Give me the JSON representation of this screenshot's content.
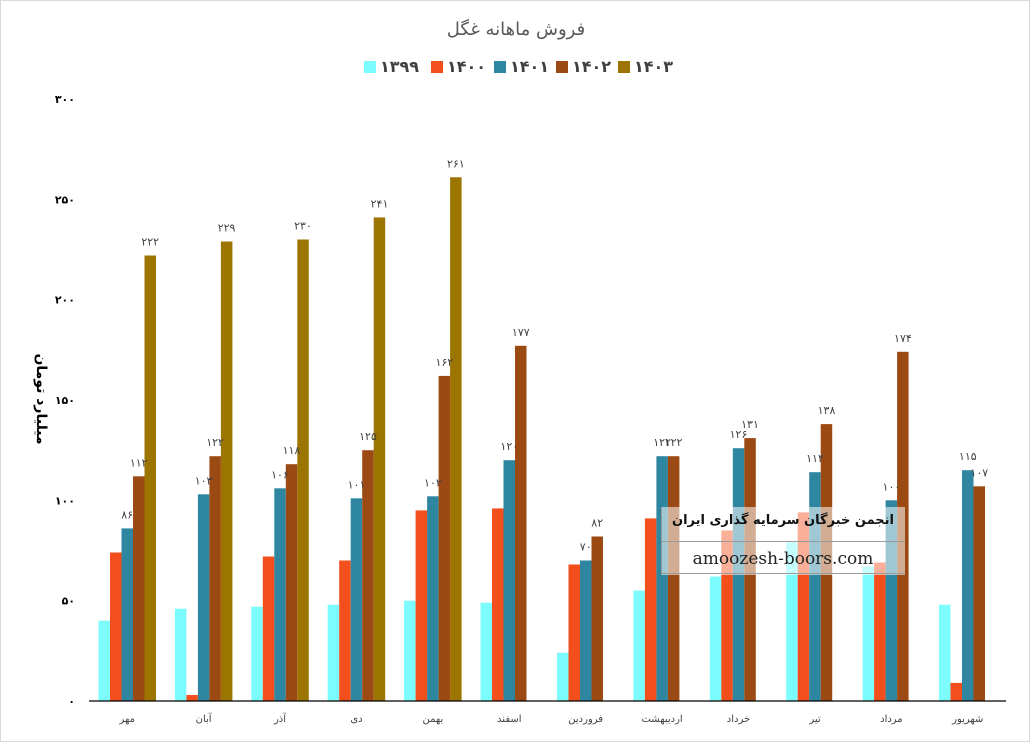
{
  "chart_data": {
    "type": "bar",
    "title": "فروش ماهانه غگل",
    "ylabel": "میلیارد تومان",
    "xlabel": "",
    "ylim": [
      0,
      300
    ],
    "yticks": [
      "۰",
      "۵۰",
      "۱۰۰",
      "۱۵۰",
      "۲۰۰",
      "۲۵۰",
      "۳۰۰"
    ],
    "grid": false,
    "legend_position": "top",
    "categories": [
      "مهر",
      "آبان",
      "آذر",
      "دی",
      "بهمن",
      "اسفند",
      "فروردین",
      "اردیبهشت",
      "خرداد",
      "تیر",
      "مرداد",
      "شهریور"
    ],
    "series": [
      {
        "name": "۱۳۹۹",
        "color": "#7cfcfc",
        "values": [
          40,
          46,
          47,
          48,
          50,
          49,
          24,
          55,
          62,
          79,
          67,
          48
        ],
        "labels": [
          null,
          null,
          null,
          null,
          null,
          null,
          null,
          null,
          null,
          null,
          null,
          null
        ]
      },
      {
        "name": "۱۴۰۰",
        "color": "#f24f1c",
        "values": [
          74,
          3,
          72,
          70,
          95,
          96,
          68,
          91,
          85,
          94,
          69,
          9
        ],
        "labels": [
          null,
          null,
          null,
          null,
          null,
          null,
          null,
          null,
          null,
          null,
          null,
          null
        ]
      },
      {
        "name": "۱۴۰۱",
        "color": "#2e86a0",
        "values": [
          86,
          103,
          106,
          101,
          102,
          120,
          70,
          122,
          126,
          114,
          100,
          115
        ],
        "labels": [
          "۸۶",
          "۱۰۳",
          "۱۰۶",
          "۱۰۱",
          "۱۰۲",
          "۱۲۰",
          "۷۰",
          "۱۲۲",
          "۱۲۶",
          "۱۱۴",
          "۱۰۰",
          "۱۱۵"
        ]
      },
      {
        "name": "۱۴۰۲",
        "color": "#9c4a13",
        "values": [
          112,
          122,
          118,
          125,
          162,
          177,
          82,
          122,
          131,
          138,
          174,
          107
        ],
        "labels": [
          "۱۱۲",
          "۱۲۲",
          "۱۱۸",
          "۱۲۵",
          "۱۶۲",
          "۱۷۷",
          "۸۲",
          "۱۲۲",
          "۱۳۱",
          "۱۳۸",
          "۱۷۴",
          "۱۰۷"
        ]
      },
      {
        "name": "۱۴۰۳",
        "color": "#9c7400",
        "values": [
          222,
          229,
          230,
          241,
          261,
          null,
          null,
          null,
          null,
          null,
          null,
          null
        ],
        "labels": [
          "۲۲۲",
          "۲۲۹",
          "۲۳۰",
          "۲۴۱",
          "۲۶۱",
          null,
          null,
          null,
          null,
          null,
          null,
          null
        ]
      }
    ]
  },
  "watermark": {
    "line1": "انجمن خبرگان سرمایه گذاری ایران",
    "line2": "amoozesh-boors.com"
  }
}
